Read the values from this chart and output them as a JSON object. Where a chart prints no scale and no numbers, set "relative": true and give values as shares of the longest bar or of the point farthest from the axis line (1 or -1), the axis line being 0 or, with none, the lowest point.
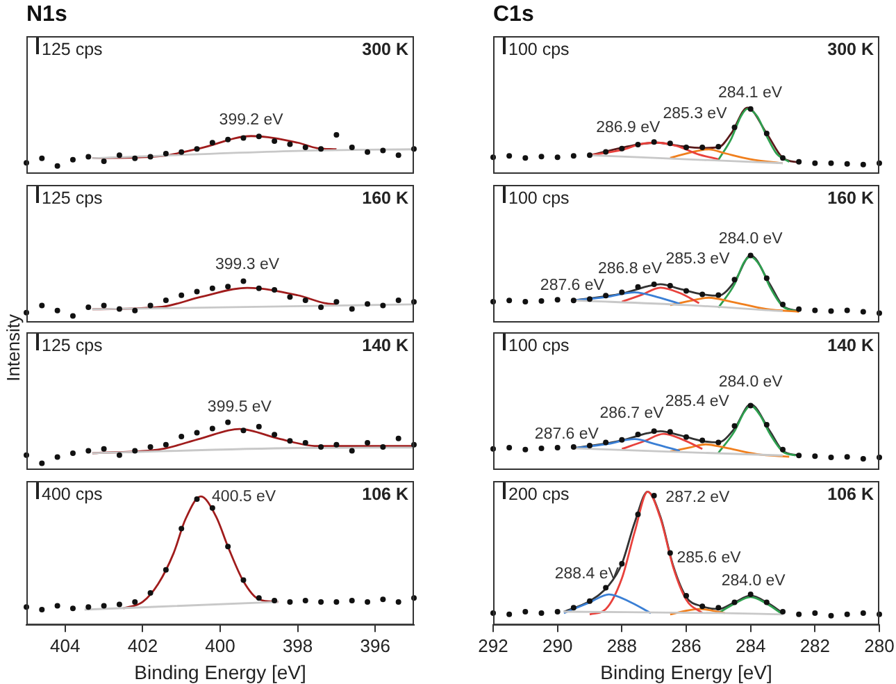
{
  "chart_data": [
    {
      "type": "line",
      "title": "N1s",
      "relative": true,
      "xlim": [
        405,
        395
      ],
      "xticks": [
        404,
        402,
        400,
        398,
        396
      ],
      "tick_labels": false,
      "annotations": [
        "125 cps",
        "300 K",
        {
          "text": "399.2 eV",
          "x": 399.2,
          "y": 0.97
        }
      ],
      "series": [
        {
          "color": "#c8c8c8",
          "x": [
            403.3,
            397.5,
            395
          ],
          "values": [
            0.4,
            0.6,
            0.63
          ]
        },
        {
          "color": "#a01c1c",
          "x": [
            403.3,
            401.5,
            400.5,
            399.2,
            398,
            397.5,
            397
          ],
          "values": [
            0.4,
            0.46,
            0.66,
            0.97,
            0.8,
            0.66,
            0.63
          ]
        },
        {
          "type": "scatter",
          "marker": "circle",
          "color": "#111111",
          "x": [
            405,
            404.6,
            404.2,
            403.8,
            403.4,
            403,
            402.6,
            402.2,
            401.8,
            401.4,
            401,
            400.6,
            400.2,
            399.8,
            399.4,
            399,
            398.6,
            398.2,
            397.8,
            397.4,
            397,
            396.6,
            396.2,
            395.8,
            395.4,
            395
          ],
          "values": [
            0.28,
            0.4,
            0.2,
            0.36,
            0.44,
            0.32,
            0.48,
            0.4,
            0.44,
            0.52,
            0.56,
            0.64,
            0.8,
            0.88,
            0.92,
            0.96,
            0.84,
            0.76,
            0.68,
            0.64,
            1,
            0.68,
            0.56,
            0.6,
            0.48,
            0.64
          ]
        }
      ]
    },
    {
      "type": "line",
      "relative": true,
      "xlim": [
        405,
        395
      ],
      "xticks": [
        404,
        402,
        400,
        398,
        396
      ],
      "tick_labels": false,
      "annotations": [
        "125 cps",
        "160 K",
        {
          "text": "399.3 eV",
          "x": 399.3,
          "y": 0.84
        }
      ],
      "series": [
        {
          "color": "#c8c8c8",
          "x": [
            403.3,
            397,
            395
          ],
          "values": [
            0.32,
            0.41,
            0.44
          ]
        },
        {
          "color": "#a01c1c",
          "x": [
            403.3,
            401.5,
            400.5,
            399.3,
            398,
            397.3,
            397
          ],
          "values": [
            0.32,
            0.38,
            0.62,
            0.84,
            0.66,
            0.47,
            0.44
          ]
        },
        {
          "type": "scatter",
          "marker": "circle",
          "color": "#111111",
          "x": [
            405,
            404.6,
            404.2,
            403.8,
            403.4,
            403,
            402.6,
            402.2,
            401.8,
            401.4,
            401,
            400.6,
            400.2,
            399.8,
            399.4,
            399,
            398.6,
            398.2,
            397.8,
            397.4,
            397,
            396.6,
            396.2,
            395.8,
            395.4,
            395
          ],
          "values": [
            0.24,
            0.41,
            0.29,
            0.16,
            0.37,
            0.41,
            0.33,
            0.29,
            0.41,
            0.54,
            0.66,
            0.75,
            0.83,
            0.87,
            1,
            0.83,
            0.79,
            0.62,
            0.54,
            0.37,
            0.5,
            0.33,
            0.45,
            0.41,
            0.54,
            0.5
          ]
        }
      ]
    },
    {
      "type": "line",
      "ylabel": "Intensity",
      "relative": true,
      "xlim": [
        405,
        395
      ],
      "xticks": [
        404,
        402,
        400,
        398,
        396
      ],
      "tick_labels": false,
      "annotations": [
        "125 cps",
        "140 K",
        {
          "text": "399.5 eV",
          "x": 399.5,
          "y": 0.86
        }
      ],
      "series": [
        {
          "color": "#c8c8c8",
          "x": [
            403.3,
            398,
            395
          ],
          "values": [
            0.35,
            0.46,
            0.47
          ]
        },
        {
          "color": "#a01c1c",
          "x": [
            403.3,
            401.5,
            400.5,
            399.5,
            398.5,
            397.5,
            395
          ],
          "values": [
            0.35,
            0.44,
            0.66,
            0.86,
            0.66,
            0.5,
            0.5
          ]
        },
        {
          "type": "scatter",
          "marker": "circle",
          "color": "#111111",
          "x": [
            405,
            404.6,
            404.2,
            403.8,
            403.4,
            403,
            402.6,
            402.2,
            401.8,
            401.4,
            401,
            400.6,
            400.2,
            399.8,
            399.4,
            399,
            398.6,
            398.2,
            397.8,
            397.4,
            397,
            396.6,
            396.2,
            395.8,
            395.4,
            395
          ],
          "values": [
            0.31,
            0.14,
            0.27,
            0.35,
            0.4,
            0.44,
            0.31,
            0.4,
            0.48,
            0.53,
            0.7,
            0.78,
            0.87,
            1,
            0.83,
            0.91,
            0.74,
            0.61,
            0.57,
            0.48,
            0.53,
            0.4,
            0.57,
            0.48,
            0.66,
            0.53
          ]
        }
      ]
    },
    {
      "type": "line",
      "relative": true,
      "xlim": [
        405,
        395
      ],
      "xticks": [
        404,
        402,
        400,
        398,
        396
      ],
      "tick_labels": "x",
      "xlabel": "Binding Energy [eV]",
      "annotations": [
        "400 cps",
        "106 K",
        {
          "text": "400.5 eV",
          "x": 400.5,
          "y": 1
        }
      ],
      "series": [
        {
          "color": "#c8c8c8",
          "x": [
            403.5,
            398.5
          ],
          "values": [
            0.12,
            0.18
          ]
        },
        {
          "color": "#a01c1c",
          "x": [
            402.5,
            402,
            401.6,
            401.2,
            400.9,
            400.5,
            400.1,
            399.8,
            399.4,
            399,
            398.5
          ],
          "values": [
            0.13,
            0.18,
            0.32,
            0.56,
            0.82,
            1,
            0.84,
            0.61,
            0.34,
            0.2,
            0.18
          ]
        },
        {
          "type": "scatter",
          "marker": "circle",
          "color": "#111111",
          "x": [
            405,
            404.6,
            404.2,
            403.8,
            403.4,
            403,
            402.6,
            402.2,
            401.8,
            401.4,
            401,
            400.6,
            400.2,
            399.8,
            399.4,
            399,
            398.6,
            398.2,
            397.8,
            397.4,
            397,
            396.6,
            396.2,
            395.8,
            395.4,
            395
          ],
          "values": [
            0.14,
            0.12,
            0.15,
            0.13,
            0.14,
            0.15,
            0.16,
            0.18,
            0.25,
            0.43,
            0.75,
            0.98,
            0.91,
            0.61,
            0.35,
            0.21,
            0.19,
            0.18,
            0.19,
            0.18,
            0.18,
            0.19,
            0.18,
            0.2,
            0.18,
            0.21
          ]
        }
      ]
    },
    {
      "type": "line",
      "title": "C1s",
      "relative": true,
      "xlim": [
        292,
        280
      ],
      "xticks": [
        292,
        290,
        288,
        286,
        284,
        282,
        280
      ],
      "tick_labels": false,
      "annotations": [
        "100 cps",
        "300 K",
        {
          "text": "284.1 eV",
          "x": 284.1,
          "y": 0.98
        },
        {
          "text": "285.3 eV",
          "x": 285.3,
          "y": 0.37
        },
        {
          "text": "286.9 eV",
          "x": 286.9,
          "y": 0.47
        }
      ],
      "series": [
        {
          "color": "#c8c8c8",
          "x": [
            289,
            286,
            283
          ],
          "values": [
            0.28,
            0.22,
            0.16
          ]
        },
        {
          "color": "#e8413c",
          "x": [
            289,
            288,
            287.4,
            286.9,
            286.3,
            285.6,
            285
          ],
          "values": [
            0.28,
            0.36,
            0.45,
            0.47,
            0.42,
            0.29,
            0.22
          ]
        },
        {
          "color": "#f07f1d",
          "x": [
            286.5,
            285.8,
            285.3,
            284.8,
            284,
            283
          ],
          "values": [
            0.24,
            0.33,
            0.37,
            0.31,
            0.22,
            0.16
          ]
        },
        {
          "color": "#2ea04f",
          "x": [
            285,
            284.6,
            284.3,
            284.1,
            283.8,
            283.5,
            283.2,
            282.8
          ],
          "values": [
            0.21,
            0.53,
            0.87,
            0.98,
            0.87,
            0.57,
            0.31,
            0.18
          ]
        },
        {
          "color": "#5a1a1a",
          "x": [
            289,
            287.4,
            286.9,
            286.2,
            285.5,
            285,
            284.6,
            284.1,
            283.5,
            283,
            282.5
          ],
          "values": [
            0.28,
            0.45,
            0.47,
            0.42,
            0.39,
            0.4,
            0.61,
            1,
            0.61,
            0.24,
            0.17
          ]
        },
        {
          "type": "scatter",
          "marker": "circle",
          "color": "#111111",
          "x": [
            292,
            291.5,
            291,
            290.5,
            290,
            289.5,
            289,
            288.5,
            288,
            287.5,
            287,
            286.5,
            286,
            285.5,
            285,
            284.5,
            284,
            283.5,
            283,
            282.5,
            282,
            281.5,
            281,
            280.5,
            280
          ],
          "values": [
            0.25,
            0.27,
            0.24,
            0.26,
            0.25,
            0.27,
            0.28,
            0.33,
            0.38,
            0.44,
            0.48,
            0.46,
            0.4,
            0.4,
            0.41,
            0.7,
            0.98,
            0.61,
            0.24,
            0.18,
            0.16,
            0.16,
            0.15,
            0.14,
            0.16
          ]
        }
      ]
    },
    {
      "type": "line",
      "relative": true,
      "xlim": [
        292,
        280
      ],
      "xticks": [
        292,
        290,
        288,
        286,
        284,
        282,
        280
      ],
      "tick_labels": false,
      "annotations": [
        "100 cps",
        "160 K",
        {
          "text": "284.0 eV",
          "x": 284,
          "y": 0.98
        },
        {
          "text": "285.3 eV",
          "x": 285.3,
          "y": 0.37
        },
        {
          "text": "286.8 eV",
          "x": 286.8,
          "y": 0.52
        },
        {
          "text": "287.6 eV",
          "x": 287.6,
          "y": 0.45
        }
      ],
      "series": [
        {
          "color": "#c8c8c8",
          "x": [
            289.5,
            286,
            283
          ],
          "values": [
            0.33,
            0.26,
            0.17
          ]
        },
        {
          "color": "#3a7fd5",
          "x": [
            289.5,
            288.5,
            287.6,
            286.9,
            286.2
          ],
          "values": [
            0.33,
            0.38,
            0.45,
            0.38,
            0.28
          ]
        },
        {
          "color": "#e8413c",
          "x": [
            288,
            287.4,
            286.8,
            286.2,
            285.6
          ],
          "values": [
            0.31,
            0.41,
            0.52,
            0.44,
            0.29
          ]
        },
        {
          "color": "#f07f1d",
          "x": [
            286.5,
            285.8,
            285.3,
            284.6,
            283.5,
            282.5
          ],
          "values": [
            0.26,
            0.33,
            0.37,
            0.31,
            0.2,
            0.16
          ]
        },
        {
          "color": "#2ea04f",
          "x": [
            285,
            284.5,
            284.2,
            284,
            283.7,
            283.4,
            283,
            282.6
          ],
          "values": [
            0.22,
            0.57,
            0.9,
            0.98,
            0.84,
            0.53,
            0.24,
            0.17
          ]
        },
        {
          "color": "#333333",
          "x": [
            289.5,
            288,
            287.2,
            286.8,
            286.2,
            285.5,
            285,
            284.5,
            284,
            283.4,
            283,
            282.5
          ],
          "values": [
            0.33,
            0.43,
            0.54,
            0.57,
            0.5,
            0.42,
            0.4,
            0.61,
            1,
            0.57,
            0.25,
            0.17
          ]
        },
        {
          "type": "scatter",
          "marker": "circle",
          "color": "#111111",
          "x": [
            292,
            291.5,
            291,
            290.5,
            290,
            289.5,
            289,
            288.5,
            288,
            287.5,
            287,
            286.5,
            286,
            285.5,
            285,
            284.5,
            284,
            283.5,
            283,
            282.5,
            282,
            281.5,
            281,
            280.5,
            280
          ],
          "values": [
            0.31,
            0.33,
            0.31,
            0.32,
            0.34,
            0.33,
            0.35,
            0.4,
            0.45,
            0.53,
            0.57,
            0.55,
            0.47,
            0.42,
            0.41,
            0.64,
            1,
            0.66,
            0.27,
            0.2,
            0.18,
            0.17,
            0.18,
            0.16,
            0.14
          ]
        }
      ]
    },
    {
      "type": "line",
      "relative": true,
      "xlim": [
        292,
        280
      ],
      "xticks": [
        292,
        290,
        288,
        286,
        284,
        282,
        280
      ],
      "tick_labels": false,
      "annotations": [
        "100 cps",
        "140 K",
        {
          "text": "284.0 eV",
          "x": 284,
          "y": 0.98
        },
        {
          "text": "285.4 eV",
          "x": 285.4,
          "y": 0.39
        },
        {
          "text": "286.7 eV",
          "x": 286.7,
          "y": 0.55
        },
        {
          "text": "287.6 eV",
          "x": 287.6,
          "y": 0.47
        }
      ],
      "series": [
        {
          "color": "#c8c8c8",
          "x": [
            289.5,
            286,
            283
          ],
          "values": [
            0.33,
            0.27,
            0.22
          ]
        },
        {
          "color": "#3a7fd5",
          "x": [
            289.5,
            288.5,
            287.6,
            287,
            286.2
          ],
          "values": [
            0.33,
            0.39,
            0.47,
            0.4,
            0.29
          ]
        },
        {
          "color": "#e8413c",
          "x": [
            288,
            287.3,
            286.7,
            286.1,
            285.5
          ],
          "values": [
            0.32,
            0.44,
            0.55,
            0.46,
            0.32
          ]
        },
        {
          "color": "#f07f1d",
          "x": [
            286.5,
            285.9,
            285.4,
            284.8,
            283.8,
            282.8
          ],
          "values": [
            0.28,
            0.34,
            0.39,
            0.34,
            0.24,
            0.2
          ]
        },
        {
          "color": "#2ea04f",
          "x": [
            285,
            284.5,
            284.2,
            284,
            283.7,
            283.4,
            283,
            282.6
          ],
          "values": [
            0.26,
            0.59,
            0.88,
            0.98,
            0.83,
            0.55,
            0.28,
            0.22
          ]
        },
        {
          "color": "#333333",
          "x": [
            289.5,
            288,
            287.2,
            286.8,
            286.2,
            285.5,
            285,
            284.5,
            284,
            283.4,
            283,
            282.5
          ],
          "values": [
            0.33,
            0.45,
            0.56,
            0.59,
            0.53,
            0.44,
            0.42,
            0.63,
            1,
            0.59,
            0.29,
            0.22
          ]
        },
        {
          "type": "scatter",
          "marker": "circle",
          "color": "#111111",
          "x": [
            292,
            291.5,
            291,
            290.5,
            290,
            289.5,
            289,
            288.5,
            288,
            287.5,
            287,
            286.5,
            286,
            285.5,
            285,
            284.5,
            284,
            283.5,
            283,
            282.5,
            282,
            281.5,
            281,
            280.5,
            280
          ],
          "values": [
            0.32,
            0.34,
            0.31,
            0.33,
            0.34,
            0.35,
            0.37,
            0.42,
            0.46,
            0.54,
            0.59,
            0.58,
            0.5,
            0.45,
            0.42,
            0.67,
            0.98,
            0.69,
            0.31,
            0.22,
            0.21,
            0.19,
            0.2,
            0.17,
            0.19
          ]
        }
      ]
    },
    {
      "type": "line",
      "relative": true,
      "xlim": [
        292,
        280
      ],
      "xticks": [
        292,
        290,
        288,
        286,
        284,
        282,
        280
      ],
      "tick_labels": "x",
      "xlabel": "Binding Energy [eV]",
      "annotations": [
        "200 cps",
        "106 K",
        {
          "text": "287.2 eV",
          "x": 287.2,
          "y": 1
        },
        {
          "text": "285.6 eV",
          "x": 285.6,
          "y": 0.12
        },
        {
          "text": "284.0 eV",
          "x": 284,
          "y": 0.21
        },
        {
          "text": "288.4 eV",
          "x": 288.4,
          "y": 0.23
        }
      ],
      "series": [
        {
          "color": "#c8c8c8",
          "x": [
            289.8,
            285,
            283
          ],
          "values": [
            0.1,
            0.09,
            0.08
          ]
        },
        {
          "color": "#3a7fd5",
          "x": [
            289.8,
            289,
            288.4,
            287.8,
            287.1
          ],
          "values": [
            0.09,
            0.17,
            0.23,
            0.18,
            0.09
          ]
        },
        {
          "color": "#e8413c",
          "x": [
            289,
            288.5,
            288,
            287.6,
            287.2,
            286.8,
            286.4,
            286,
            285.5
          ],
          "values": [
            0.08,
            0.12,
            0.35,
            0.7,
            1,
            0.8,
            0.43,
            0.19,
            0.09
          ]
        },
        {
          "color": "#f07f1d",
          "x": [
            286.5,
            285.6,
            284.8
          ],
          "values": [
            0.08,
            0.12,
            0.09
          ]
        },
        {
          "color": "#2ea04f",
          "x": [
            285,
            284.5,
            284,
            283.5,
            283
          ],
          "values": [
            0.09,
            0.16,
            0.21,
            0.16,
            0.08
          ]
        },
        {
          "color": "#333333",
          "x": [
            289.8,
            289,
            288.4,
            288,
            287.6,
            287.2,
            286.8,
            286.4,
            286,
            285.5,
            285,
            284.5,
            284,
            283.5,
            283
          ],
          "values": [
            0.1,
            0.18,
            0.3,
            0.46,
            0.77,
            1,
            0.81,
            0.44,
            0.21,
            0.14,
            0.12,
            0.17,
            0.22,
            0.17,
            0.09
          ]
        },
        {
          "type": "scatter",
          "marker": "circle",
          "color": "#111111",
          "x": [
            292,
            291.5,
            291,
            290.5,
            290,
            289.5,
            289,
            288.5,
            288,
            287.5,
            287,
            286.5,
            286,
            285.5,
            285,
            284.5,
            284,
            283.5,
            283,
            282.5,
            282,
            281.5,
            281,
            280.5,
            280
          ],
          "values": [
            0.09,
            0.08,
            0.1,
            0.09,
            0.1,
            0.13,
            0.18,
            0.28,
            0.46,
            0.83,
            0.97,
            0.54,
            0.22,
            0.14,
            0.13,
            0.17,
            0.23,
            0.17,
            0.1,
            0.08,
            0.09,
            0.07,
            0.08,
            0.09,
            0.08
          ]
        }
      ]
    }
  ]
}
